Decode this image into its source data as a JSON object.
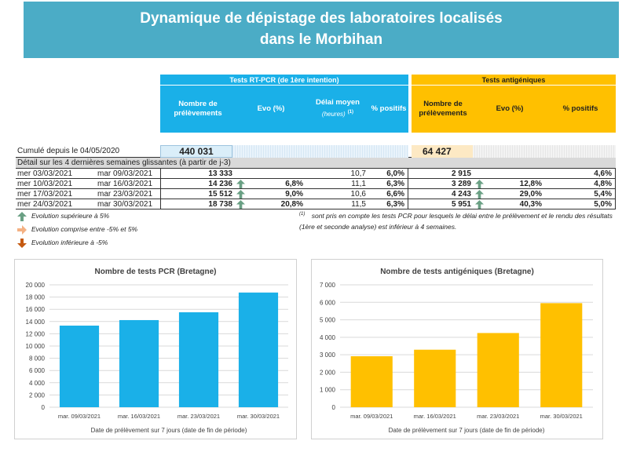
{
  "banner": {
    "title_line1": "Dynamique de dépistage des laboratoires localisés",
    "title_line2": "dans le Morbihan"
  },
  "colors": {
    "banner": "#4bacc6",
    "pcr": "#1ab0e8",
    "antigen": "#ffc000",
    "up_arrow": "#6aa084",
    "stable_arrow": "#f4b183",
    "down_arrow": "#c55a11"
  },
  "table": {
    "pcr_group": "Tests RT-PCR (de 1ère intention)",
    "ag_group": "Tests antigéniques",
    "pcr_headers": {
      "n": "Nombre de prélèvements",
      "evo": "Evo (%)",
      "delay": "Délai moyen",
      "delay_sub": "(heures)",
      "delay_sup": "(1)",
      "pos": "% positifs"
    },
    "ag_headers": {
      "n": "Nombre de prélèvements",
      "evo": "Evo (%)",
      "pos": "% positifs"
    },
    "cumul_label": "Cumulé depuis le 04/05/2020",
    "cumul_pcr": "440 031",
    "cumul_ag": "64 427",
    "detail_label": "Détail sur les 4 dernières semaines glissantes (à partir de j-3)",
    "rows": [
      {
        "start": "mer 03/03/2021",
        "end": "mar 09/03/2021",
        "pcr_n": "13 333",
        "pcr_evo": "",
        "delay": "10,7",
        "pcr_pos": "6,0%",
        "ag_n": "2 915",
        "ag_evo": "",
        "ag_pos": "4,6%",
        "pcr_arrow": "",
        "ag_arrow": ""
      },
      {
        "start": "mer 10/03/2021",
        "end": "mar 16/03/2021",
        "pcr_n": "14 236",
        "pcr_evo": "6,8%",
        "delay": "11,1",
        "pcr_pos": "6,3%",
        "ag_n": "3 289",
        "ag_evo": "12,8%",
        "ag_pos": "4,8%",
        "pcr_arrow": "up",
        "ag_arrow": "up"
      },
      {
        "start": "mer 17/03/2021",
        "end": "mar 23/03/2021",
        "pcr_n": "15 512",
        "pcr_evo": "9,0%",
        "delay": "10,6",
        "pcr_pos": "6,6%",
        "ag_n": "4 243",
        "ag_evo": "29,0%",
        "ag_pos": "5,4%",
        "pcr_arrow": "up",
        "ag_arrow": "up"
      },
      {
        "start": "mer 24/03/2021",
        "end": "mar 30/03/2021",
        "pcr_n": "18 738",
        "pcr_evo": "20,8%",
        "delay": "11,5",
        "pcr_pos": "6,3%",
        "ag_n": "5 951",
        "ag_evo": "40,3%",
        "ag_pos": "5,0%",
        "pcr_arrow": "up",
        "ag_arrow": "up"
      }
    ]
  },
  "legend": {
    "up": "Evolution supérieure à 5%",
    "stable": "Evolution comprise entre -5% et 5%",
    "down": "Evolution inférieure à -5%"
  },
  "footnote": {
    "mark": "(1)",
    "text": "sont pris en compte les tests PCR pour lesquels le délai entre le prélèvement et le rendu des résultats (1ère et seconde analyse) est inférieur à 4 semaines."
  },
  "chart_data": [
    {
      "type": "bar",
      "title": "Nombre de tests PCR (Bretagne)",
      "categories": [
        "mar. 09/03/2021",
        "mar. 16/03/2021",
        "mar. 23/03/2021",
        "mar. 30/03/2021"
      ],
      "values": [
        13333,
        14236,
        15512,
        18738
      ],
      "xlabel": "Date de prélèvement sur 7 jours (date de fin de période)",
      "ylabel": "",
      "ylim": [
        0,
        20000
      ],
      "yticks": [
        0,
        2000,
        4000,
        6000,
        8000,
        10000,
        12000,
        14000,
        16000,
        18000,
        20000
      ],
      "ytick_labels": [
        "0",
        "2 000",
        "4 000",
        "6 000",
        "8 000",
        "10 000",
        "12 000",
        "14 000",
        "16 000",
        "18 000",
        "20 000"
      ],
      "color": "#1ab0e8",
      "grid": true
    },
    {
      "type": "bar",
      "title": "Nombre de tests antigéniques (Bretagne)",
      "categories": [
        "mar. 09/03/2021",
        "mar. 16/03/2021",
        "mar. 23/03/2021",
        "mar. 30/03/2021"
      ],
      "values": [
        2915,
        3289,
        4243,
        5951
      ],
      "xlabel": "Date de prélèvement sur 7 jours (date de fin de période)",
      "ylabel": "",
      "ylim": [
        0,
        7000
      ],
      "yticks": [
        0,
        1000,
        2000,
        3000,
        4000,
        5000,
        6000,
        7000
      ],
      "ytick_labels": [
        "0",
        "1 000",
        "2 000",
        "3 000",
        "4 000",
        "5 000",
        "6 000",
        "7 000"
      ],
      "color": "#ffc000",
      "grid": true
    }
  ]
}
